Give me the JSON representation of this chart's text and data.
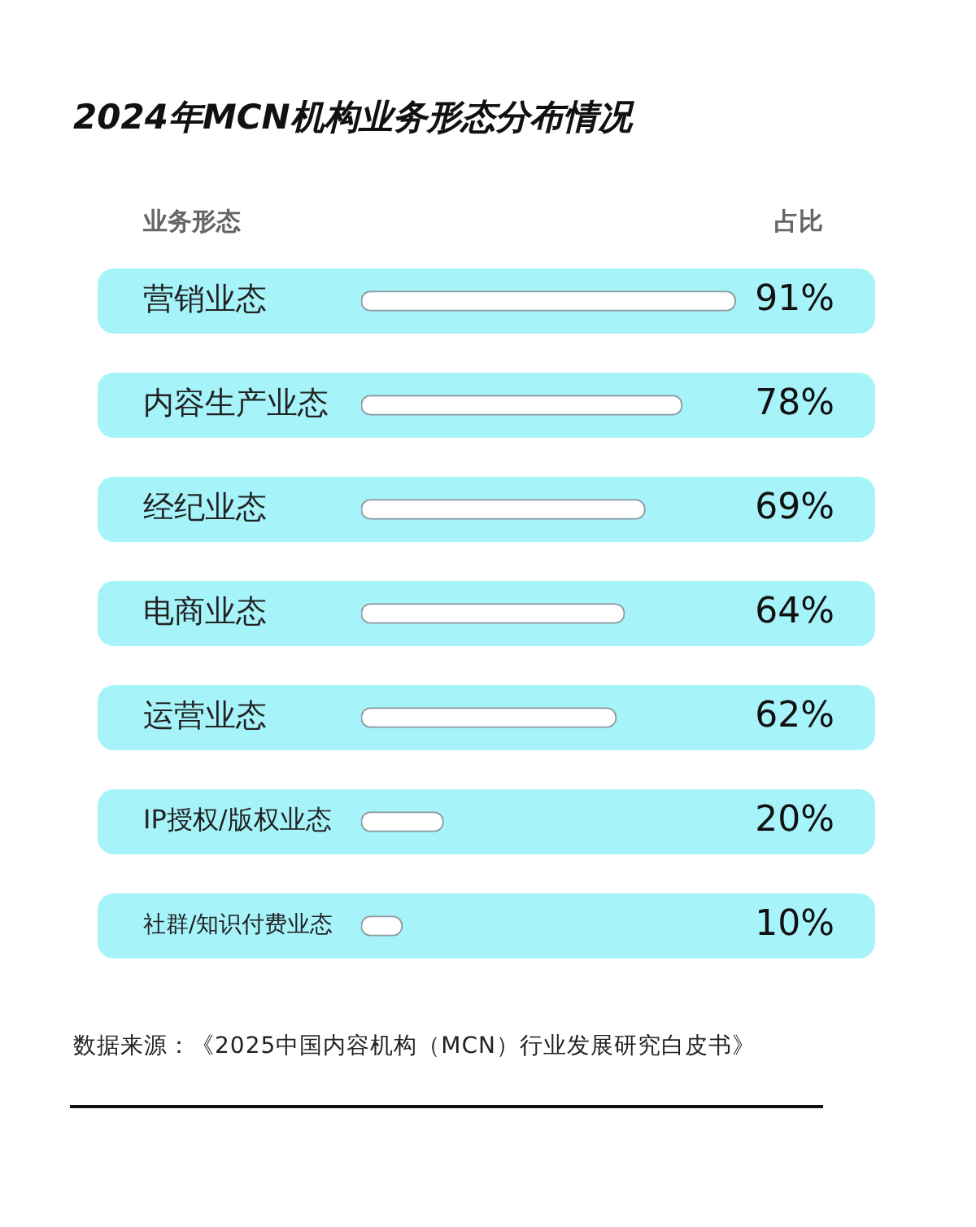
{
  "chart_data": {
    "type": "bar",
    "orientation": "horizontal",
    "title": "2024年MCN机构业务形态分布情况",
    "ylabel": "业务形态",
    "xlabel": "占比",
    "categories": [
      "营销业态",
      "内容生产业态",
      "经纪业态",
      "电商业态",
      "运营业态",
      "IP授权/版权业态",
      "社群/知识付费业态"
    ],
    "values": [
      91,
      78,
      69,
      64,
      62,
      20,
      10
    ],
    "color": "#ffffff",
    "value_labels": [
      "91%",
      "78%",
      "69%",
      "64%",
      "62%",
      "20%",
      "10%"
    ],
    "tick_labels": "y",
    "annotations": [
      "数据来源：《2025中国内容机构（MCN）行业发展研究白皮书》"
    ]
  }
}
